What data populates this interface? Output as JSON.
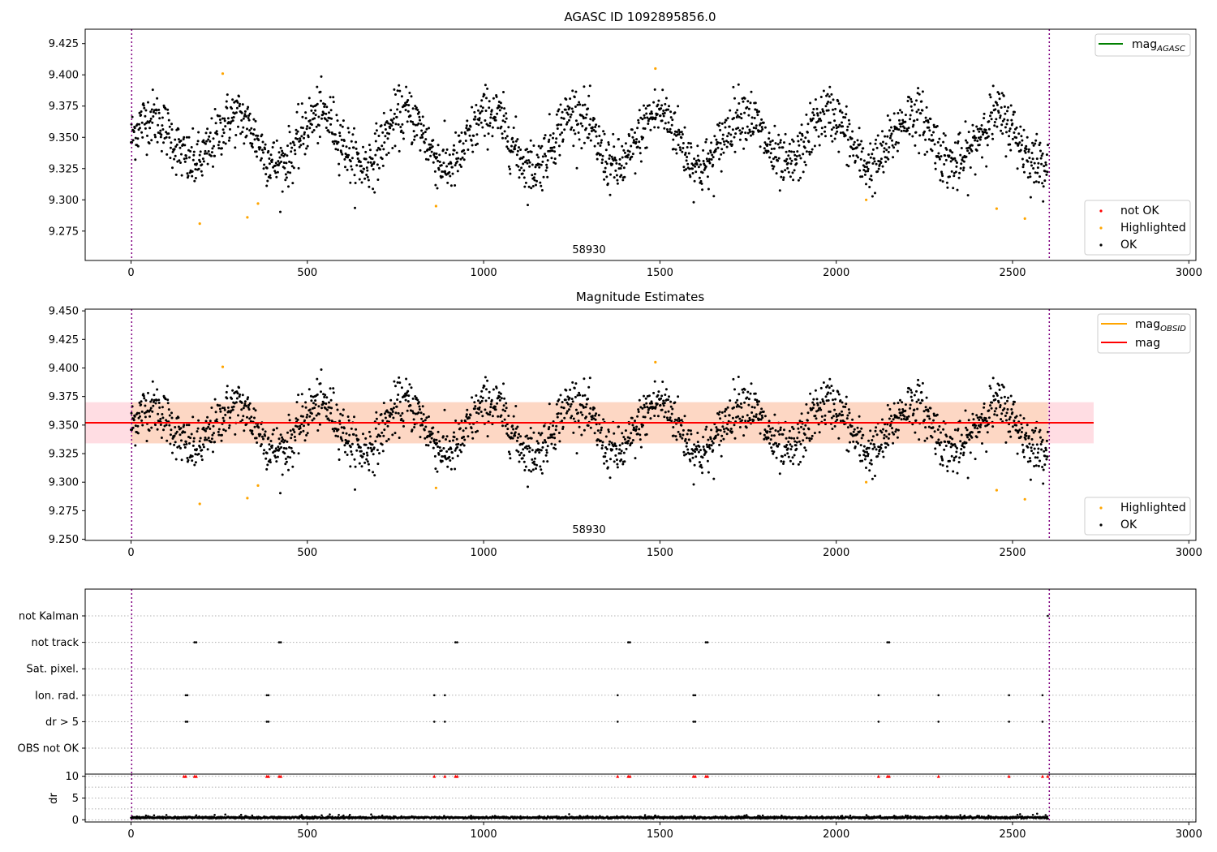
{
  "chart_data": [
    {
      "type": "scatter",
      "title": "AGASC ID 1092895856.0",
      "xlim": [
        -130,
        3020
      ],
      "ylim": [
        9.2515,
        9.4365
      ],
      "xticks": [
        "0",
        "500",
        "1000",
        "1500",
        "2000",
        "2500",
        "3000"
      ],
      "yticks": [
        "9.275",
        "9.300",
        "9.325",
        "9.350",
        "9.375",
        "9.400",
        "9.425"
      ],
      "vlines": [
        0,
        2600
      ],
      "annotation": "58930",
      "legend_lines": [
        {
          "name": "mag_AGASC",
          "color": "#008000"
        }
      ],
      "legend_markers": [
        {
          "name": "not OK",
          "color": "#ff0000"
        },
        {
          "name": "Highlighted",
          "color": "#ffa500"
        },
        {
          "name": "OK",
          "color": "#000000"
        }
      ],
      "highlighted_points": [
        [
          195,
          9.281
        ],
        [
          260,
          9.401
        ],
        [
          330,
          9.286
        ],
        [
          360,
          9.297
        ],
        [
          865,
          9.295
        ],
        [
          1487,
          9.405
        ],
        [
          2085,
          9.3
        ],
        [
          2455,
          9.293
        ],
        [
          2535,
          9.285
        ]
      ],
      "ok_series": {
        "x_range": [
          0,
          2600
        ],
        "count": 2150,
        "baseline": 9.348,
        "amplitude": 0.022,
        "period": 240,
        "noise": 0.011
      }
    },
    {
      "type": "scatter",
      "title": "Magnitude Estimates",
      "xlim": [
        -130,
        3020
      ],
      "ylim": [
        9.249,
        9.4515
      ],
      "xticks": [
        "0",
        "500",
        "1000",
        "1500",
        "2000",
        "2500",
        "3000"
      ],
      "yticks": [
        "9.250",
        "9.275",
        "9.300",
        "9.325",
        "9.350",
        "9.375",
        "9.400",
        "9.425",
        "9.450"
      ],
      "vlines": [
        0,
        2600
      ],
      "annotation": "58930",
      "mag_line": {
        "value": 9.352,
        "x_range": [
          -130,
          2730
        ],
        "color": "#ff0000"
      },
      "band_outer": {
        "y_range": [
          9.334,
          9.37
        ],
        "x_range": [
          -130,
          2730
        ],
        "color": "#ffdde3"
      },
      "band_inner": {
        "y_range": [
          9.334,
          9.37
        ],
        "x_range": [
          0,
          2600
        ],
        "color": "#fdd7c4"
      },
      "legend_lines": [
        {
          "name": "mag_OBSID",
          "color": "#ffa500"
        },
        {
          "name": "mag",
          "color": "#ff0000"
        }
      ],
      "legend_markers": [
        {
          "name": "Highlighted",
          "color": "#ffa500"
        },
        {
          "name": "OK",
          "color": "#000000"
        }
      ],
      "highlighted_points": [
        [
          195,
          9.281
        ],
        [
          260,
          9.401
        ],
        [
          330,
          9.286
        ],
        [
          360,
          9.297
        ],
        [
          865,
          9.295
        ],
        [
          1487,
          9.405
        ],
        [
          2085,
          9.3
        ],
        [
          2455,
          9.293
        ],
        [
          2535,
          9.285
        ]
      ]
    },
    {
      "type": "scatter",
      "title": "",
      "categories": [
        "not Kalman",
        "not track",
        "Sat. pixel.",
        "Ion. rad.",
        "dr > 5",
        "OBS not OK"
      ],
      "flags": {
        "not Kalman": [
          2600
        ],
        "not track": [
          180,
          185,
          420,
          425,
          920,
          925,
          1410,
          1415,
          1630,
          1635,
          2145,
          2150
        ],
        "Sat. pixel.": [],
        "Ion. rad.": [
          155,
          160,
          385,
          390,
          860,
          890,
          1380,
          1595,
          1600,
          2120,
          2290,
          2490,
          2585
        ],
        "dr > 5": [
          155,
          160,
          385,
          390,
          860,
          890,
          1380,
          1595,
          1600,
          2120,
          2290,
          2490,
          2585
        ],
        "OBS not OK": []
      }
    },
    {
      "type": "scatter",
      "ylabel": "dr",
      "xlim": [
        -130,
        3020
      ],
      "ylim": [
        -0.5,
        10.5
      ],
      "xticks": [
        "0",
        "500",
        "1000",
        "1500",
        "2000",
        "2500",
        "3000"
      ],
      "yticks": [
        "0",
        "5",
        "10"
      ],
      "vlines": [
        0,
        2600
      ],
      "clipped_points_at_10": [
        150,
        155,
        180,
        185,
        385,
        390,
        420,
        425,
        860,
        890,
        920,
        925,
        1380,
        1410,
        1415,
        1595,
        1600,
        1630,
        1635,
        2120,
        2145,
        2150,
        2290,
        2490,
        2585,
        2600
      ],
      "ok_series": {
        "x_range": [
          0,
          2600
        ],
        "count": 2150,
        "typical": 0.45,
        "spread": 0.35
      }
    }
  ]
}
